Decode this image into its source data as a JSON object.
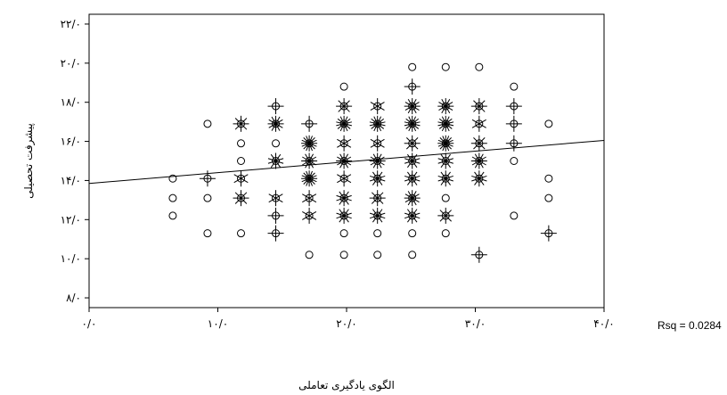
{
  "chart_data": {
    "type": "scatter",
    "xlabel": "الگوی یادگیری تعاملی",
    "ylabel": "پیشرفت تحصیلی",
    "xlim": [
      0,
      40
    ],
    "ylim": [
      7.5,
      22.5
    ],
    "x_ticks": [
      {
        "value": 0,
        "label": "۰/۰"
      },
      {
        "value": 10,
        "label": "۱۰/۰"
      },
      {
        "value": 20,
        "label": "۲۰/۰"
      },
      {
        "value": 30,
        "label": "۳۰/۰"
      },
      {
        "value": 40,
        "label": "۴۰/۰"
      }
    ],
    "y_ticks": [
      {
        "value": 8,
        "label": "۸/۰"
      },
      {
        "value": 10,
        "label": "۱۰/۰"
      },
      {
        "value": 12,
        "label": "۱۲/۰"
      },
      {
        "value": 14,
        "label": "۱۴/۰"
      },
      {
        "value": 16,
        "label": "۱۶/۰"
      },
      {
        "value": 18,
        "label": "۱۸/۰"
      },
      {
        "value": 20,
        "label": "۲۰/۰"
      },
      {
        "value": 22,
        "label": "۲۲/۰"
      }
    ],
    "marker_style": "sunflower",
    "points": [
      {
        "x": 6.5,
        "y": 14.1,
        "n": 1
      },
      {
        "x": 6.5,
        "y": 13.1,
        "n": 1
      },
      {
        "x": 6.5,
        "y": 12.2,
        "n": 1
      },
      {
        "x": 9.2,
        "y": 16.9,
        "n": 1
      },
      {
        "x": 9.2,
        "y": 14.1,
        "n": 2
      },
      {
        "x": 9.2,
        "y": 13.1,
        "n": 1
      },
      {
        "x": 9.2,
        "y": 11.3,
        "n": 1
      },
      {
        "x": 11.8,
        "y": 16.9,
        "n": 4
      },
      {
        "x": 11.8,
        "y": 15.9,
        "n": 1
      },
      {
        "x": 11.8,
        "y": 15.0,
        "n": 1
      },
      {
        "x": 11.8,
        "y": 14.1,
        "n": 3
      },
      {
        "x": 11.8,
        "y": 13.1,
        "n": 4
      },
      {
        "x": 11.8,
        "y": 11.3,
        "n": 1
      },
      {
        "x": 14.5,
        "y": 17.8,
        "n": 2
      },
      {
        "x": 14.5,
        "y": 16.9,
        "n": 6
      },
      {
        "x": 14.5,
        "y": 15.9,
        "n": 1
      },
      {
        "x": 14.5,
        "y": 15.0,
        "n": 5
      },
      {
        "x": 14.5,
        "y": 13.1,
        "n": 3
      },
      {
        "x": 14.5,
        "y": 12.2,
        "n": 2
      },
      {
        "x": 14.5,
        "y": 11.3,
        "n": 2
      },
      {
        "x": 17.1,
        "y": 16.9,
        "n": 2
      },
      {
        "x": 17.1,
        "y": 15.9,
        "n": 8
      },
      {
        "x": 17.1,
        "y": 15.0,
        "n": 6
      },
      {
        "x": 17.1,
        "y": 14.1,
        "n": 8
      },
      {
        "x": 17.1,
        "y": 13.1,
        "n": 3
      },
      {
        "x": 17.1,
        "y": 12.2,
        "n": 3
      },
      {
        "x": 17.1,
        "y": 10.2,
        "n": 1
      },
      {
        "x": 19.8,
        "y": 18.8,
        "n": 1
      },
      {
        "x": 19.8,
        "y": 17.8,
        "n": 4
      },
      {
        "x": 19.8,
        "y": 16.9,
        "n": 7
      },
      {
        "x": 19.8,
        "y": 15.9,
        "n": 3
      },
      {
        "x": 19.8,
        "y": 15.0,
        "n": 6
      },
      {
        "x": 19.8,
        "y": 14.1,
        "n": 3
      },
      {
        "x": 19.8,
        "y": 13.1,
        "n": 5
      },
      {
        "x": 19.8,
        "y": 12.2,
        "n": 5
      },
      {
        "x": 19.8,
        "y": 11.3,
        "n": 1
      },
      {
        "x": 19.8,
        "y": 10.2,
        "n": 1
      },
      {
        "x": 22.4,
        "y": 17.8,
        "n": 3
      },
      {
        "x": 22.4,
        "y": 16.9,
        "n": 7
      },
      {
        "x": 22.4,
        "y": 15.9,
        "n": 3
      },
      {
        "x": 22.4,
        "y": 15.0,
        "n": 6
      },
      {
        "x": 22.4,
        "y": 14.1,
        "n": 5
      },
      {
        "x": 22.4,
        "y": 13.1,
        "n": 4
      },
      {
        "x": 22.4,
        "y": 12.2,
        "n": 5
      },
      {
        "x": 22.4,
        "y": 11.3,
        "n": 1
      },
      {
        "x": 22.4,
        "y": 10.2,
        "n": 1
      },
      {
        "x": 25.1,
        "y": 19.8,
        "n": 1
      },
      {
        "x": 25.1,
        "y": 18.8,
        "n": 2
      },
      {
        "x": 25.1,
        "y": 17.8,
        "n": 6
      },
      {
        "x": 25.1,
        "y": 16.9,
        "n": 7
      },
      {
        "x": 25.1,
        "y": 15.9,
        "n": 4
      },
      {
        "x": 25.1,
        "y": 15.0,
        "n": 5
      },
      {
        "x": 25.1,
        "y": 14.1,
        "n": 5
      },
      {
        "x": 25.1,
        "y": 13.1,
        "n": 6
      },
      {
        "x": 25.1,
        "y": 12.2,
        "n": 5
      },
      {
        "x": 25.1,
        "y": 11.3,
        "n": 1
      },
      {
        "x": 25.1,
        "y": 10.2,
        "n": 1
      },
      {
        "x": 27.7,
        "y": 19.8,
        "n": 1
      },
      {
        "x": 27.7,
        "y": 17.8,
        "n": 6
      },
      {
        "x": 27.7,
        "y": 16.9,
        "n": 7
      },
      {
        "x": 27.7,
        "y": 15.9,
        "n": 8
      },
      {
        "x": 27.7,
        "y": 15.0,
        "n": 5
      },
      {
        "x": 27.7,
        "y": 14.1,
        "n": 5
      },
      {
        "x": 27.7,
        "y": 13.1,
        "n": 1
      },
      {
        "x": 27.7,
        "y": 12.2,
        "n": 4
      },
      {
        "x": 27.7,
        "y": 11.3,
        "n": 1
      },
      {
        "x": 30.3,
        "y": 19.8,
        "n": 1
      },
      {
        "x": 30.3,
        "y": 17.8,
        "n": 4
      },
      {
        "x": 30.3,
        "y": 16.9,
        "n": 3
      },
      {
        "x": 30.3,
        "y": 15.9,
        "n": 4
      },
      {
        "x": 30.3,
        "y": 15.0,
        "n": 6
      },
      {
        "x": 30.3,
        "y": 14.1,
        "n": 5
      },
      {
        "x": 30.3,
        "y": 10.2,
        "n": 2
      },
      {
        "x": 33.0,
        "y": 18.8,
        "n": 1
      },
      {
        "x": 33.0,
        "y": 17.8,
        "n": 2
      },
      {
        "x": 33.0,
        "y": 16.9,
        "n": 2
      },
      {
        "x": 33.0,
        "y": 15.9,
        "n": 2
      },
      {
        "x": 33.0,
        "y": 15.0,
        "n": 1
      },
      {
        "x": 33.0,
        "y": 12.2,
        "n": 1
      },
      {
        "x": 35.7,
        "y": 16.9,
        "n": 1
      },
      {
        "x": 35.7,
        "y": 14.1,
        "n": 1
      },
      {
        "x": 35.7,
        "y": 13.1,
        "n": 1
      },
      {
        "x": 35.7,
        "y": 11.3,
        "n": 2
      }
    ],
    "fit_line": {
      "x": [
        0,
        40
      ],
      "y": [
        13.85,
        16.05
      ]
    },
    "rsq_label": "Rsq = 0.0284",
    "grid": false,
    "legend": "none"
  }
}
